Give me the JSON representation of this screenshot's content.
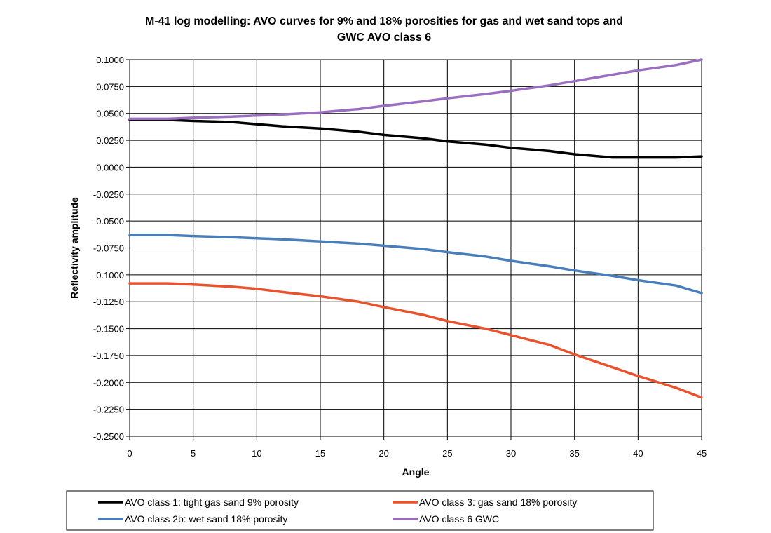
{
  "chart_data": {
    "type": "line",
    "title_lines": [
      "M-41 log modelling: AVO curves for 9% and 18% porosities for gas and wet sand tops and",
      "GWC AVO class 6"
    ],
    "xlabel": "Angle",
    "ylabel": "Reflectivity amplitude",
    "xlim": [
      0,
      45
    ],
    "ylim": [
      -0.25,
      0.1
    ],
    "x_ticks": [
      "0",
      "5",
      "10",
      "15",
      "20",
      "25",
      "30",
      "35",
      "40",
      "45"
    ],
    "y_ticks": [
      "0.1000",
      "0.0750",
      "0.0500",
      "0.0250",
      "0.0000",
      "-0.0250",
      "-0.0500",
      "-0.0750",
      "-0.1000",
      "-0.1250",
      "-0.1500",
      "-0.1750",
      "-0.2000",
      "-0.2250",
      "-0.2500"
    ],
    "grid": true,
    "legend_position": "bottom",
    "x": [
      0,
      3,
      5,
      8,
      10,
      12,
      15,
      18,
      20,
      23,
      25,
      28,
      30,
      33,
      35,
      38,
      40,
      43,
      45
    ],
    "series": [
      {
        "name": "AVO class 1: tight gas sand 9% porosity",
        "color": "#000000",
        "values": [
          0.044,
          0.044,
          0.043,
          0.042,
          0.04,
          0.038,
          0.036,
          0.033,
          0.03,
          0.027,
          0.024,
          0.021,
          0.018,
          0.015,
          0.012,
          0.009,
          0.009,
          0.009,
          0.01
        ]
      },
      {
        "name": "AVO class 2b: wet sand 18% porosity",
        "color": "#4a7ebb",
        "values": [
          -0.063,
          -0.063,
          -0.064,
          -0.065,
          -0.066,
          -0.067,
          -0.069,
          -0.071,
          -0.073,
          -0.076,
          -0.079,
          -0.083,
          -0.087,
          -0.092,
          -0.096,
          -0.101,
          -0.105,
          -0.11,
          -0.117
        ]
      },
      {
        "name": "AVO class 3: gas sand 18% porosity",
        "color": "#e8522e",
        "values": [
          -0.108,
          -0.108,
          -0.109,
          -0.111,
          -0.113,
          -0.116,
          -0.12,
          -0.125,
          -0.13,
          -0.137,
          -0.143,
          -0.15,
          -0.156,
          -0.165,
          -0.174,
          -0.186,
          -0.194,
          -0.205,
          -0.214
        ]
      },
      {
        "name": "AVO class 6 GWC",
        "color": "#9b6ec0",
        "values": [
          0.045,
          0.045,
          0.046,
          0.047,
          0.048,
          0.049,
          0.051,
          0.054,
          0.057,
          0.061,
          0.064,
          0.068,
          0.071,
          0.076,
          0.08,
          0.086,
          0.09,
          0.095,
          0.1
        ]
      }
    ]
  }
}
